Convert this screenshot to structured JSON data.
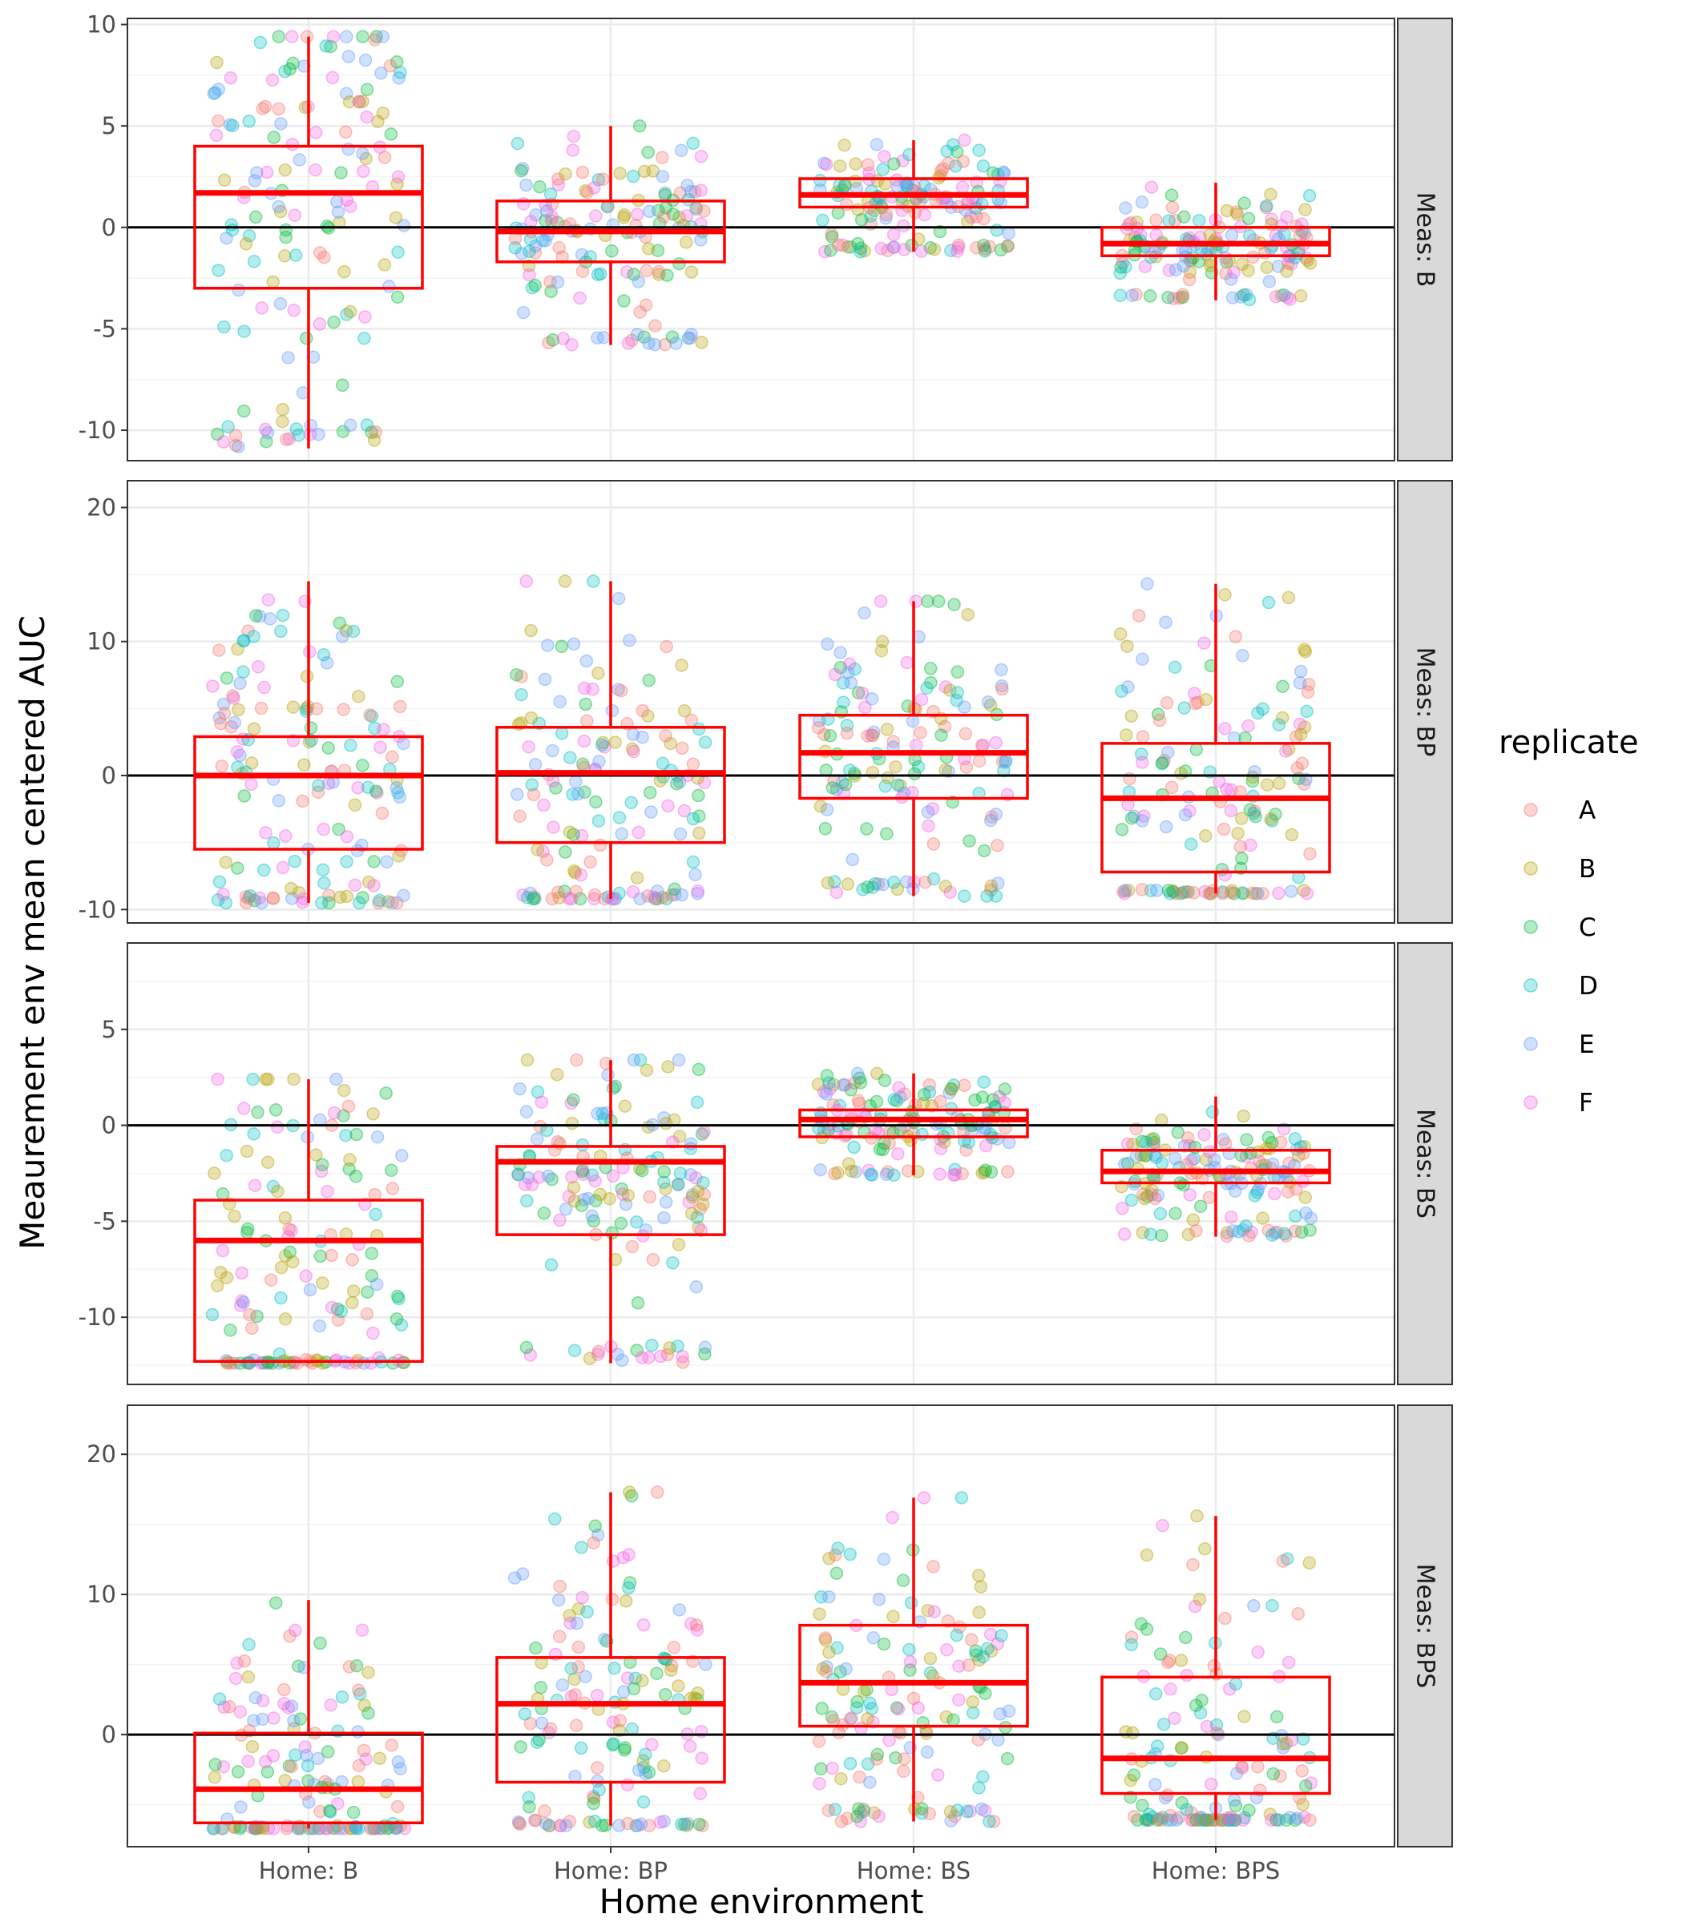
{
  "chart_data": {
    "type": "box-jitter",
    "xlabel": "Home environment",
    "ylabel": "Meaurement env mean centered AUC",
    "categories": [
      "Home: B",
      "Home: BP",
      "Home: BS",
      "Home: BPS"
    ],
    "legend": {
      "title": "replicate",
      "position": "right",
      "items": [
        {
          "label": "A",
          "color": "#F8766D"
        },
        {
          "label": "B",
          "color": "#B79F00"
        },
        {
          "label": "C",
          "color": "#00BA38"
        },
        {
          "label": "D",
          "color": "#00BFC4"
        },
        {
          "label": "E",
          "color": "#619CFF"
        },
        {
          "label": "F",
          "color": "#F564E3"
        }
      ]
    },
    "grid": true,
    "reference_line": 0,
    "box_color": "#FF0000",
    "facets": [
      {
        "strip": "Meas: B",
        "ylim": [
          -11.5,
          10.3
        ],
        "yticks": [
          10,
          5,
          0,
          -5,
          -10
        ],
        "ytick_labels": [
          "10",
          "5",
          "0",
          "-5",
          "-10"
        ],
        "boxes": [
          {
            "category": "Home: B",
            "whisker_low": -10.9,
            "q1": -3.0,
            "median": 1.7,
            "q3": 4.0,
            "whisker_high": 9.4
          },
          {
            "category": "Home: BP",
            "whisker_low": -5.8,
            "q1": -1.7,
            "median": -0.2,
            "q3": 1.3,
            "whisker_high": 5.0
          },
          {
            "category": "Home: BS",
            "whisker_low": -1.2,
            "q1": 1.0,
            "median": 1.6,
            "q3": 2.4,
            "whisker_high": 4.3
          },
          {
            "category": "Home: BPS",
            "whisker_low": -3.6,
            "q1": -1.4,
            "median": -0.8,
            "q3": 0.0,
            "whisker_high": 2.2
          }
        ]
      },
      {
        "strip": "Meas: BP",
        "ylim": [
          -11,
          22
        ],
        "yticks": [
          20,
          10,
          0,
          -10
        ],
        "ytick_labels": [
          "20",
          "10",
          "0",
          "-10"
        ],
        "boxes": [
          {
            "category": "Home: B",
            "whisker_low": -9.5,
            "q1": -5.5,
            "median": 0.0,
            "q3": 2.9,
            "whisker_high": 14.5
          },
          {
            "category": "Home: BP",
            "whisker_low": -9.2,
            "q1": -5.0,
            "median": 0.2,
            "q3": 3.6,
            "whisker_high": 14.5
          },
          {
            "category": "Home: BS",
            "whisker_low": -9.0,
            "q1": -1.7,
            "median": 1.7,
            "q3": 4.5,
            "whisker_high": 13.0
          },
          {
            "category": "Home: BPS",
            "whisker_low": -8.8,
            "q1": -7.2,
            "median": -1.7,
            "q3": 2.4,
            "whisker_high": 14.3
          }
        ]
      },
      {
        "strip": "Meas: BS",
        "ylim": [
          -13.5,
          9.5
        ],
        "yticks": [
          5,
          0,
          -5,
          -10
        ],
        "ytick_labels": [
          "5",
          "0",
          "-5",
          "-10"
        ],
        "boxes": [
          {
            "category": "Home: B",
            "whisker_low": -12.4,
            "q1": -12.3,
            "median": -6.0,
            "q3": -3.9,
            "whisker_high": 2.4
          },
          {
            "category": "Home: BP",
            "whisker_low": -12.4,
            "q1": -5.7,
            "median": -1.9,
            "q3": -1.1,
            "whisker_high": 3.4
          },
          {
            "category": "Home: BS",
            "whisker_low": -2.6,
            "q1": -0.6,
            "median": 0.3,
            "q3": 0.8,
            "whisker_high": 2.7
          },
          {
            "category": "Home: BPS",
            "whisker_low": -5.8,
            "q1": -3.0,
            "median": -2.4,
            "q3": -1.3,
            "whisker_high": 1.5
          }
        ]
      },
      {
        "strip": "Meas: BPS",
        "ylim": [
          -8,
          23.5
        ],
        "yticks": [
          20,
          10,
          0
        ],
        "ytick_labels": [
          "20",
          "10",
          "0"
        ],
        "boxes": [
          {
            "category": "Home: B",
            "whisker_low": -6.7,
            "q1": -6.3,
            "median": -3.9,
            "q3": 0.1,
            "whisker_high": 9.6
          },
          {
            "category": "Home: BP",
            "whisker_low": -6.5,
            "q1": -3.4,
            "median": 2.2,
            "q3": 5.5,
            "whisker_high": 17.3
          },
          {
            "category": "Home: BS",
            "whisker_low": -6.2,
            "q1": 0.6,
            "median": 3.7,
            "q3": 7.8,
            "whisker_high": 16.9
          },
          {
            "category": "Home: BPS",
            "whisker_low": -6.1,
            "q1": -4.2,
            "median": -1.7,
            "q3": 4.1,
            "whisker_high": 15.6
          }
        ]
      }
    ]
  }
}
